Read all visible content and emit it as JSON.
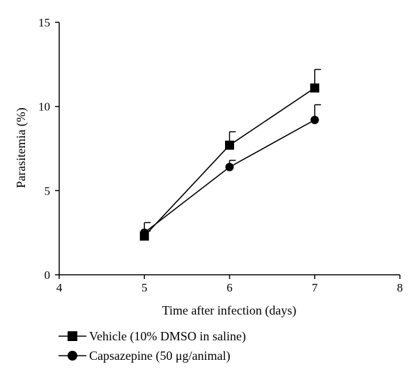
{
  "chart_data": {
    "type": "line",
    "xlabel": "Time after infection (days)",
    "ylabel": "Parasitemia (%)",
    "xlim": [
      4,
      8
    ],
    "ylim": [
      0,
      15
    ],
    "xticks": [
      4,
      5,
      6,
      7,
      8
    ],
    "yticks": [
      0,
      5,
      10,
      15
    ],
    "grid": false,
    "legend_position": "bottom-left",
    "series": [
      {
        "name": "Vehicle (10% DMSO in saline)",
        "marker": "square",
        "color": "#000000",
        "x": [
          5,
          6,
          7
        ],
        "y": [
          2.3,
          7.7,
          11.1
        ],
        "error": [
          0.3,
          0.8,
          1.1
        ]
      },
      {
        "name": "Capsazepine (50 μg/animal)",
        "marker": "circle",
        "color": "#000000",
        "x": [
          5,
          6,
          7
        ],
        "y": [
          2.5,
          6.4,
          9.2
        ],
        "error": [
          0.6,
          0.4,
          0.9
        ]
      }
    ]
  }
}
